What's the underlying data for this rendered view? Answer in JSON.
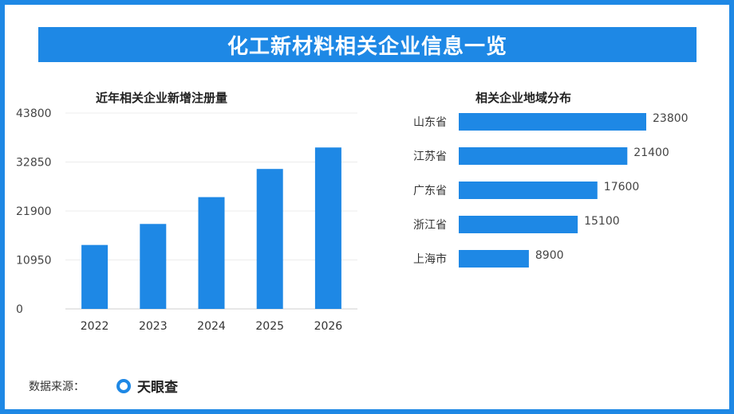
{
  "page": {
    "title": "化工新材料相关企业信息一览"
  },
  "colors": {
    "accent": "#1e88e5",
    "border": "#1e88e5"
  },
  "source": {
    "label": "数据来源：",
    "brand": "天眼查",
    "brand_icon": "tianyancha-logo-icon"
  },
  "chart_data": [
    {
      "type": "bar",
      "title": "近年相关企业新增注册量",
      "categories": [
        "2022",
        "2023",
        "2024",
        "2025",
        "2026"
      ],
      "values": [
        14300,
        19000,
        25000,
        31300,
        36100
      ],
      "yticks": [
        0,
        10950,
        21900,
        32850,
        43800
      ],
      "ylim": [
        0,
        43800
      ],
      "grid": true,
      "orientation": "vertical"
    },
    {
      "type": "bar",
      "title": "相关企业地域分布",
      "orientation": "horizontal",
      "categories": [
        "山东省",
        "江苏省",
        "广东省",
        "浙江省",
        "上海市"
      ],
      "values": [
        23800,
        21400,
        17600,
        15100,
        8900
      ],
      "data_labels": [
        "23800",
        "21400",
        "17600",
        "15100",
        "8900"
      ],
      "grid": false
    }
  ]
}
